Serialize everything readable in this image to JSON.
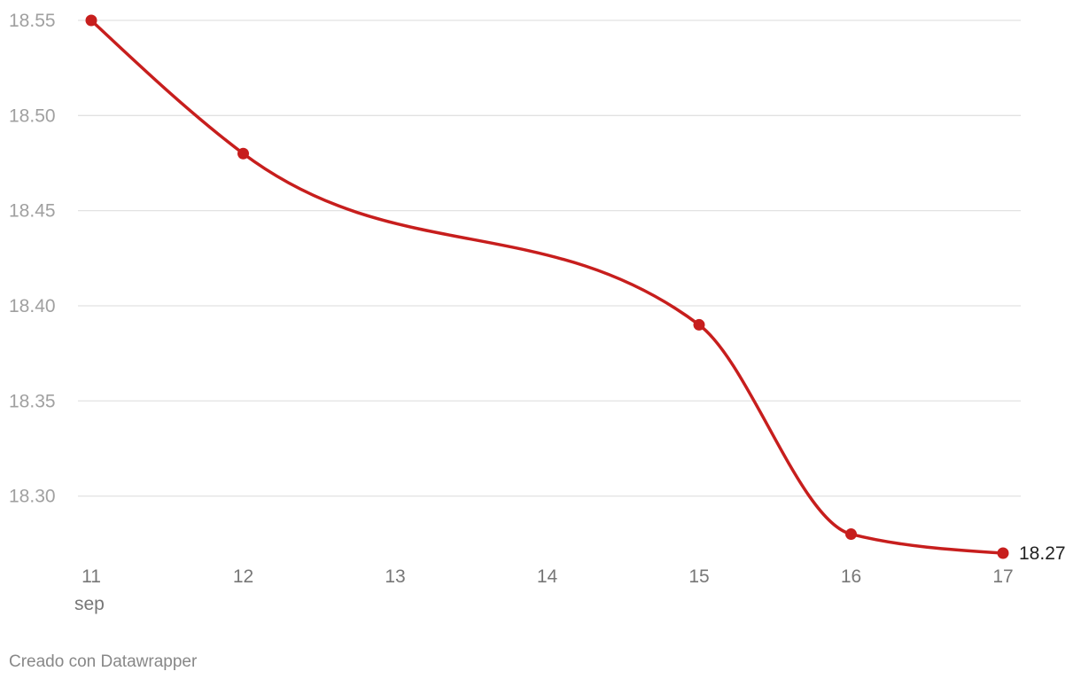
{
  "chart_data": {
    "type": "line",
    "x": [
      11,
      12,
      15,
      16,
      17
    ],
    "series": [
      {
        "name": "18.27",
        "color": "#c71e1d",
        "values": [
          18.55,
          18.48,
          18.39,
          18.28,
          18.27
        ]
      }
    ],
    "xlim": [
      11,
      17
    ],
    "xticks": [
      11,
      12,
      13,
      14,
      15,
      16,
      17
    ],
    "xtick_sublabel": "sep",
    "ylim": [
      18.27,
      18.55
    ],
    "yticks": [
      {
        "value": 18.3,
        "label": "18.30"
      },
      {
        "value": 18.35,
        "label": "18.35"
      },
      {
        "value": 18.4,
        "label": "18.40"
      },
      {
        "value": 18.45,
        "label": "18.45"
      },
      {
        "value": 18.5,
        "label": "18.50"
      },
      {
        "value": 18.55,
        "label": "18.55"
      }
    ],
    "grid": true,
    "footer": "Creado con Datawrapper"
  }
}
